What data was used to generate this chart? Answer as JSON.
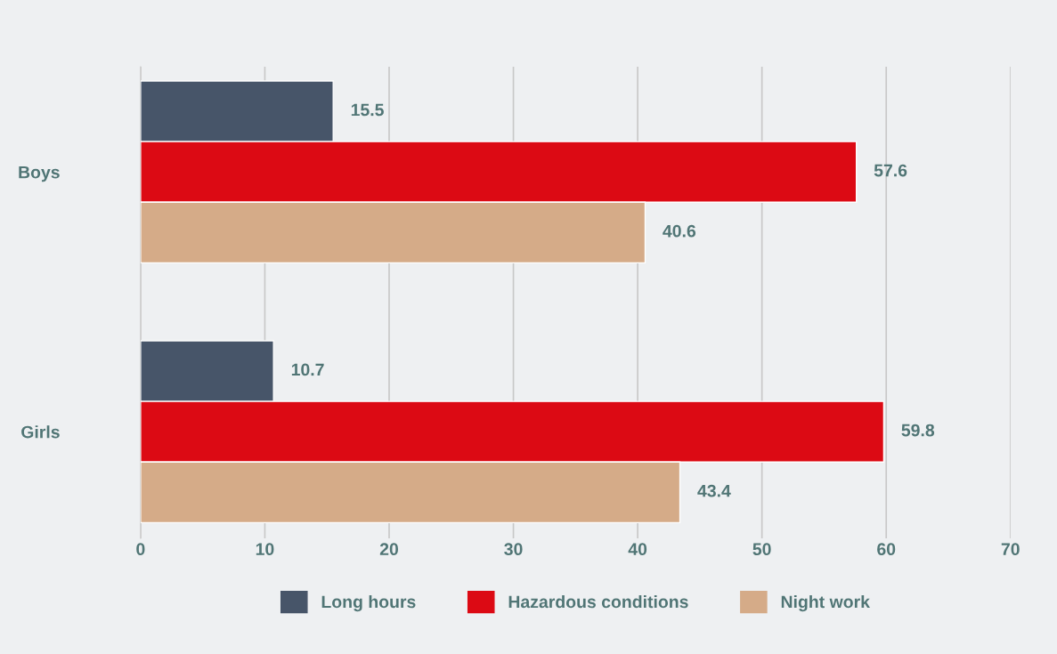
{
  "chart_data": {
    "type": "bar",
    "orientation": "horizontal",
    "categories": [
      "Boys",
      "Girls"
    ],
    "series": [
      {
        "name": "Long hours",
        "color": "#475569",
        "values": [
          15.5,
          10.7
        ]
      },
      {
        "name": "Hazardous conditions",
        "color": "#dc0a14",
        "values": [
          57.6,
          59.8
        ]
      },
      {
        "name": "Night work",
        "color": "#d5ab88",
        "values": [
          40.6,
          43.4
        ]
      }
    ],
    "xlim": [
      0,
      70
    ],
    "xticks": [
      0,
      10,
      20,
      30,
      40,
      50,
      60,
      70
    ],
    "grid": "x",
    "legend": "bottom",
    "data_labels": true
  }
}
